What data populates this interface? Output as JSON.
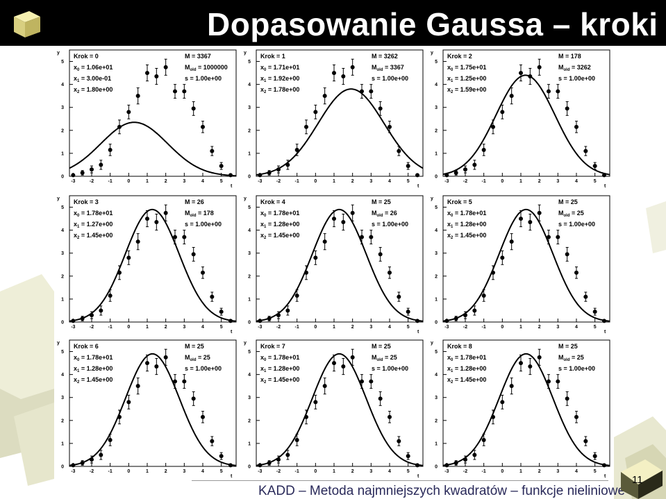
{
  "slide": {
    "title": "Dopasowanie Gaussa – kroki",
    "footer": "KADD – Metoda najmniejszych kwadratów – funkcje nieliniowe",
    "page_number": "11"
  },
  "chart_data": [
    {
      "type": "scatter",
      "step_label": "Krok = 0",
      "M": "M = 3367",
      "Mold": "= 1000000",
      "x0": "= 1.06e+01",
      "x1": "= 3.00e-01",
      "x2": "= 1.80e+00",
      "s": "s = 1.00e+00",
      "curve": {
        "A": 2.35,
        "mu": 0.3,
        "sigma": 1.8
      }
    },
    {
      "type": "scatter",
      "step_label": "Krok = 1",
      "M": "M = 3262",
      "Mold": "= 3367",
      "x0": "= 1.71e+01",
      "x1": "= 1.92e+00",
      "x2": "= 1.78e+00",
      "s": "s = 1.00e+00",
      "curve": {
        "A": 3.8,
        "mu": 1.92,
        "sigma": 1.78
      }
    },
    {
      "type": "scatter",
      "step_label": "Krok = 2",
      "M": "M = 178",
      "Mold": "= 3262",
      "x0": "= 1.75e+01",
      "x1": "= 1.25e+00",
      "x2": "= 1.59e+00",
      "s": "s = 1.00e+00",
      "curve": {
        "A": 4.4,
        "mu": 1.25,
        "sigma": 1.59
      }
    },
    {
      "type": "scatter",
      "step_label": "Krok = 3",
      "M": "M = 26",
      "Mold": "= 178",
      "x0": "= 1.78e+01",
      "x1": "= 1.27e+00",
      "x2": "= 1.45e+00",
      "s": "s = 1.00e+00",
      "curve": {
        "A": 4.9,
        "mu": 1.27,
        "sigma": 1.45
      }
    },
    {
      "type": "scatter",
      "step_label": "Krok = 4",
      "M": "M = 25",
      "Mold": "= 26",
      "x0": "= 1.78e+01",
      "x1": "= 1.28e+00",
      "x2": "= 1.45e+00",
      "s": "s = 1.00e+00",
      "curve": {
        "A": 4.9,
        "mu": 1.28,
        "sigma": 1.45
      }
    },
    {
      "type": "scatter",
      "step_label": "Krok = 5",
      "M": "M = 25",
      "Mold": "= 25",
      "x0": "= 1.78e+01",
      "x1": "= 1.28e+00",
      "x2": "= 1.45e+00",
      "s": "s = 1.00e+00",
      "curve": {
        "A": 4.9,
        "mu": 1.28,
        "sigma": 1.45
      }
    },
    {
      "type": "scatter",
      "step_label": "Krok = 6",
      "M": "M = 25",
      "Mold": "= 25",
      "x0": "= 1.78e+01",
      "x1": "= 1.28e+00",
      "x2": "= 1.45e+00",
      "s": "s = 1.00e+00",
      "curve": {
        "A": 4.9,
        "mu": 1.28,
        "sigma": 1.45
      }
    },
    {
      "type": "scatter",
      "step_label": "Krok = 7",
      "M": "M = 25",
      "Mold": "= 25",
      "x0": "= 1.78e+01",
      "x1": "= 1.28e+00",
      "x2": "= 1.45e+00",
      "s": "s = 1.00e+00",
      "curve": {
        "A": 4.9,
        "mu": 1.28,
        "sigma": 1.45
      }
    },
    {
      "type": "scatter",
      "step_label": "Krok = 8",
      "M": "M = 25",
      "Mold": "= 25",
      "x0": "= 1.78e+01",
      "x1": "= 1.28e+00",
      "x2": "= 1.45e+00",
      "s": "s = 1.00e+00",
      "curve": {
        "A": 4.9,
        "mu": 1.28,
        "sigma": 1.45
      }
    }
  ],
  "common": {
    "xlabel": "t",
    "ylabel": "y",
    "xlim": [
      -3.2,
      5.8
    ],
    "ylim": [
      0,
      5.5
    ],
    "xticks": [
      -3,
      -2,
      -1,
      0,
      1,
      2,
      3,
      4,
      5
    ],
    "yticks": [
      0,
      1,
      2,
      3,
      4,
      5
    ],
    "points": {
      "t": [
        -3,
        -2.5,
        -2,
        -1.5,
        -1,
        -0.5,
        0,
        0.5,
        1,
        1.5,
        2,
        2.5,
        3,
        3.5,
        4,
        4.5,
        5,
        5.5
      ],
      "y": [
        0.05,
        0.15,
        0.3,
        0.5,
        1.15,
        2.15,
        2.8,
        3.5,
        4.5,
        4.35,
        4.75,
        3.7,
        3.7,
        2.95,
        2.15,
        1.1,
        0.45,
        0.05
      ],
      "err": [
        0.0,
        0.1,
        0.15,
        0.2,
        0.25,
        0.3,
        0.3,
        0.35,
        0.35,
        0.35,
        0.35,
        0.3,
        0.3,
        0.3,
        0.25,
        0.2,
        0.15,
        0.05
      ]
    }
  }
}
